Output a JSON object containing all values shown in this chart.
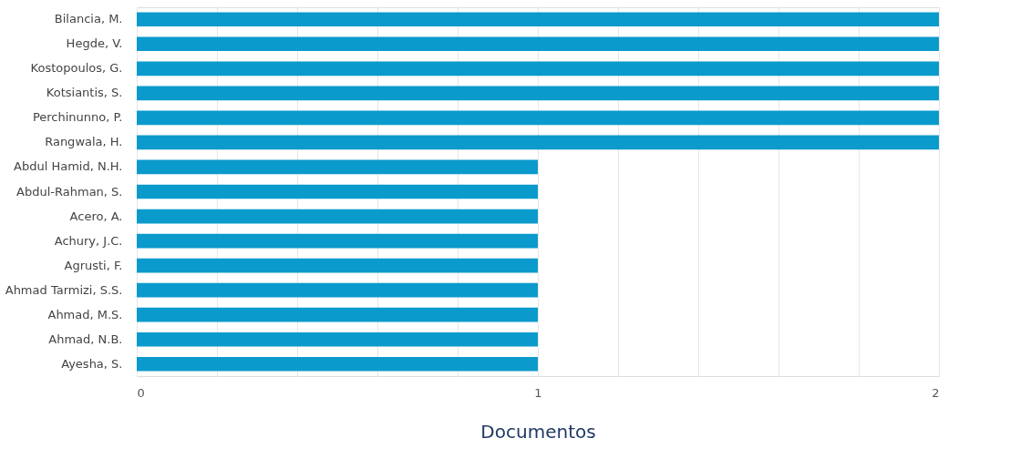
{
  "chart_data": {
    "type": "bar",
    "orientation": "horizontal",
    "xlabel": "Documentos",
    "categories": [
      "Bilancia, M.",
      "Hegde, V.",
      "Kostopoulos, G.",
      "Kotsiantis, S.",
      "Perchinunno, P.",
      "Rangwala, H.",
      "Abdul Hamid, N.H.",
      "Abdul-Rahman, S.",
      "Acero, A.",
      "Achury, J.C.",
      "Agrusti, F.",
      "Ahmad Tarmizi, S.S.",
      "Ahmad, M.S.",
      "Ahmad, N.B.",
      "Ayesha, S."
    ],
    "values": [
      2,
      2,
      2,
      2,
      2,
      2,
      1,
      1,
      1,
      1,
      1,
      1,
      1,
      1,
      1
    ],
    "color": "#0a9acb",
    "xlim": [
      0,
      2
    ],
    "xticks": [
      0,
      {
        "value": 0.2,
        "label": null
      },
      {
        "value": 0.4,
        "label": null
      },
      {
        "value": 0.6,
        "label": null
      },
      {
        "value": 0.8,
        "label": null
      },
      1,
      {
        "value": 1.2,
        "label": null
      },
      {
        "value": 1.4,
        "label": null
      },
      {
        "value": 1.6,
        "label": null
      },
      {
        "value": 1.8,
        "label": null
      },
      2
    ],
    "grid": "x"
  }
}
